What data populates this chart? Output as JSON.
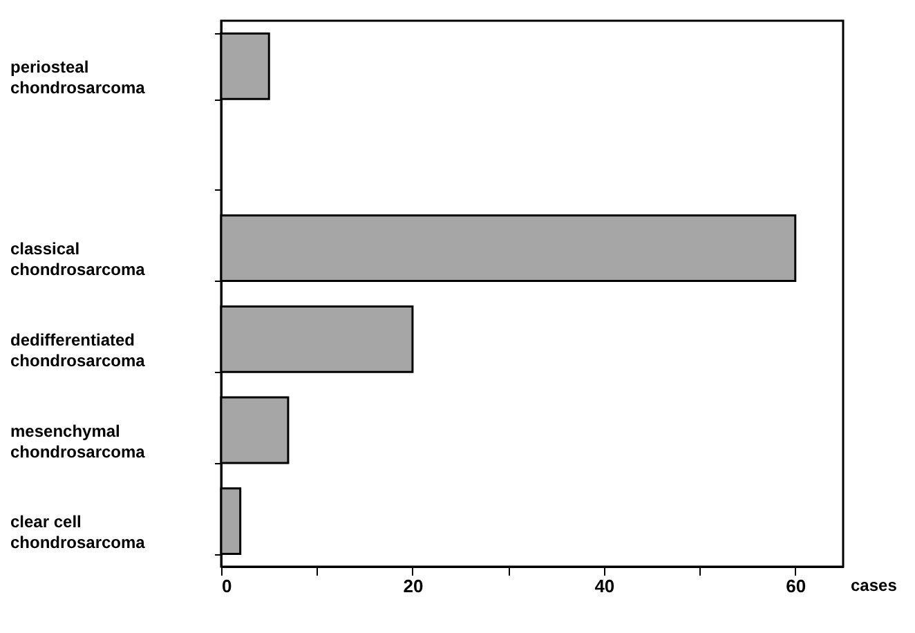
{
  "chart_data": {
    "type": "bar",
    "orientation": "horizontal",
    "xlabel": "cases",
    "categories": [
      "periosteal\nchondrosarcoma",
      null,
      "classical\nchondrosarcoma",
      "dedifferentiated\nchondrosarcoma",
      "mesenchymal\nchondrosarcoma",
      "clear cell\nchondrosarcoma"
    ],
    "values": [
      5,
      null,
      60,
      20,
      7,
      2
    ],
    "color": "#a6a6a6",
    "xlim": [
      0,
      65
    ],
    "xticks": [
      0,
      {
        "value": 10,
        "label": null
      },
      20,
      {
        "value": 30,
        "label": null
      },
      40,
      {
        "value": 50,
        "label": null
      },
      60
    ],
    "grid": false
  }
}
